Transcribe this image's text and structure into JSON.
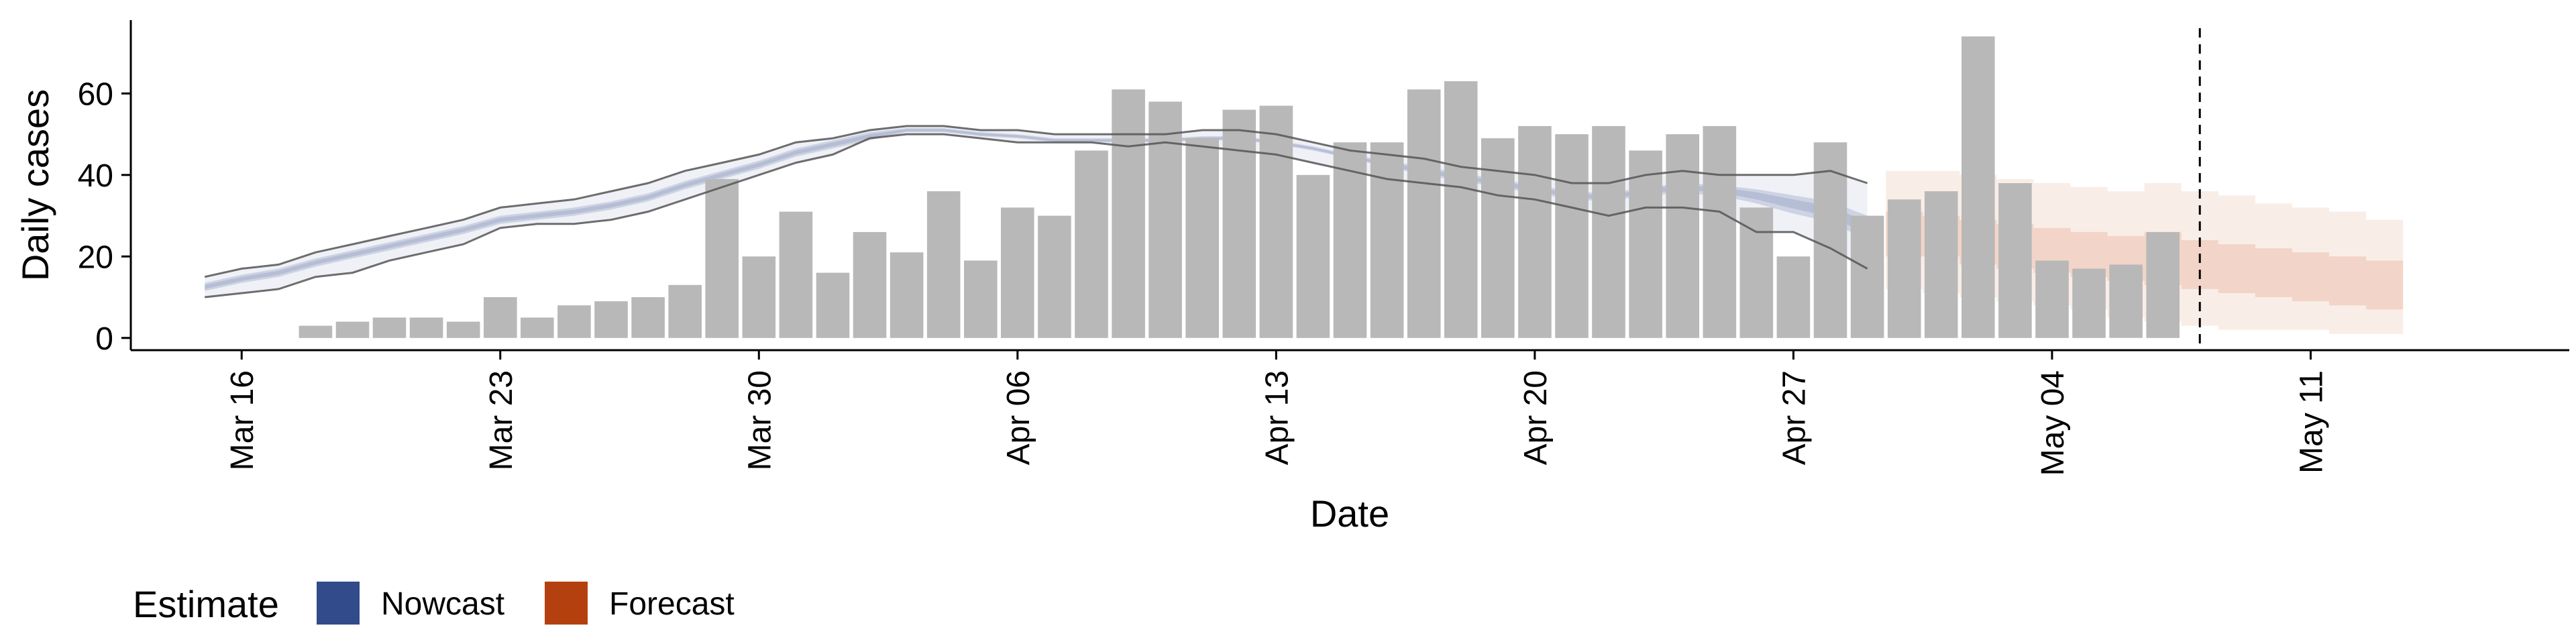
{
  "chart_data": {
    "type": "bar",
    "xlabel": "Date",
    "ylabel": "Daily cases",
    "xlim": [
      "2020-03-13",
      "2020-05-18"
    ],
    "ylim": [
      -3,
      78
    ],
    "y_ticks": [
      0,
      20,
      40,
      60
    ],
    "x_ticks": [
      "2020-03-16",
      "2020-03-23",
      "2020-03-30",
      "2020-04-06",
      "2020-04-13",
      "2020-04-20",
      "2020-04-27",
      "2020-05-04",
      "2020-05-11"
    ],
    "x_tick_labels": [
      "Mar 16",
      "Mar 23",
      "Mar 30",
      "Apr 06",
      "Apr 13",
      "Apr 20",
      "Apr 27",
      "May 04",
      "May 11"
    ],
    "grid": false,
    "legend": {
      "position": "bottom-left",
      "title": "Estimate",
      "items": [
        {
          "label": "Nowcast",
          "color": "#324b8a"
        },
        {
          "label": "Forecast",
          "color": "#b5400f"
        }
      ]
    },
    "vline_date": "2020-05-08",
    "bar_color": "#b8b8b8",
    "bars": {
      "x": [
        "2020-03-18",
        "2020-03-19",
        "2020-03-20",
        "2020-03-21",
        "2020-03-22",
        "2020-03-23",
        "2020-03-24",
        "2020-03-25",
        "2020-03-26",
        "2020-03-27",
        "2020-03-28",
        "2020-03-29",
        "2020-03-30",
        "2020-03-31",
        "2020-04-01",
        "2020-04-02",
        "2020-04-03",
        "2020-04-04",
        "2020-04-05",
        "2020-04-06",
        "2020-04-07",
        "2020-04-08",
        "2020-04-09",
        "2020-04-10",
        "2020-04-11",
        "2020-04-12",
        "2020-04-13",
        "2020-04-14",
        "2020-04-15",
        "2020-04-16",
        "2020-04-17",
        "2020-04-18",
        "2020-04-19",
        "2020-04-20",
        "2020-04-21",
        "2020-04-22",
        "2020-04-23",
        "2020-04-24",
        "2020-04-25",
        "2020-04-26",
        "2020-04-27",
        "2020-04-28",
        "2020-04-29",
        "2020-04-30",
        "2020-05-01",
        "2020-05-02",
        "2020-05-03",
        "2020-05-04",
        "2020-05-05",
        "2020-05-06",
        "2020-05-07",
        "2020-05-08"
      ],
      "values": [
        3,
        4,
        5,
        5,
        4,
        10,
        5,
        8,
        9,
        10,
        13,
        39,
        20,
        31,
        16,
        26,
        21,
        36,
        19,
        32,
        30,
        46,
        61,
        58,
        49,
        56,
        57,
        40,
        48,
        48,
        61,
        63,
        49,
        52,
        50,
        52,
        46,
        50,
        52,
        32,
        20,
        48,
        30,
        34,
        36,
        74,
        38,
        19,
        17,
        18,
        26,
        0
      ]
    },
    "series": [
      {
        "name": "Nowcast",
        "x": [
          "2020-03-15",
          "2020-03-16",
          "2020-03-17",
          "2020-03-18",
          "2020-03-19",
          "2020-03-20",
          "2020-03-21",
          "2020-03-22",
          "2020-03-23",
          "2020-03-24",
          "2020-03-25",
          "2020-03-26",
          "2020-03-27",
          "2020-03-28",
          "2020-03-29",
          "2020-03-30",
          "2020-03-31",
          "2020-04-01",
          "2020-04-02",
          "2020-04-03",
          "2020-04-04",
          "2020-04-05",
          "2020-04-06",
          "2020-04-07",
          "2020-04-08",
          "2020-04-09",
          "2020-04-10",
          "2020-04-11",
          "2020-04-12",
          "2020-04-13",
          "2020-04-14",
          "2020-04-15",
          "2020-04-16",
          "2020-04-17",
          "2020-04-18",
          "2020-04-19",
          "2020-04-20",
          "2020-04-21",
          "2020-04-22",
          "2020-04-23",
          "2020-04-24",
          "2020-04-25",
          "2020-04-26",
          "2020-04-27",
          "2020-04-28",
          "2020-04-29"
        ],
        "upper90": [
          15,
          17,
          18,
          21,
          23,
          25,
          27,
          29,
          32,
          33,
          34,
          36,
          38,
          41,
          43,
          45,
          48,
          49,
          51,
          52,
          52,
          51,
          51,
          50,
          50,
          50,
          50,
          51,
          51,
          50,
          48,
          46,
          45,
          44,
          42,
          41,
          40,
          38,
          38,
          40,
          41,
          40,
          40,
          40,
          41,
          38
        ],
        "upper50": [
          13.5,
          15.5,
          17,
          19.5,
          21.5,
          23.5,
          25.5,
          27.5,
          30,
          31,
          32,
          33.5,
          35.5,
          38.5,
          41,
          43.5,
          46.5,
          48.5,
          50.5,
          51.5,
          51.5,
          50.5,
          50,
          49,
          49,
          49,
          49,
          49.5,
          49.5,
          48.5,
          47,
          45,
          43.5,
          42,
          40.5,
          39,
          37.5,
          36,
          35.5,
          37,
          38,
          37.5,
          36.5,
          35,
          33.5,
          30
        ],
        "median": [
          12.5,
          14.5,
          16,
          18.5,
          20.5,
          22.5,
          24.5,
          26.5,
          29,
          30,
          31,
          32.5,
          34.5,
          37.5,
          40,
          42.5,
          45.5,
          47.5,
          49.5,
          51,
          51,
          50,
          49.5,
          48.5,
          48.5,
          48.5,
          48.5,
          49,
          49,
          48,
          46.5,
          44.5,
          42.5,
          41,
          39.5,
          38,
          36.5,
          35,
          34.5,
          36,
          37,
          36.5,
          35,
          33,
          31,
          27
        ],
        "lower50": [
          11.5,
          13.5,
          15,
          17.5,
          19.5,
          21.5,
          23.5,
          25.5,
          28,
          29,
          30,
          31.5,
          33.5,
          36.5,
          39,
          41.5,
          44.5,
          46.5,
          48.5,
          50.5,
          50.5,
          49.5,
          49,
          48,
          48,
          48,
          48,
          48.5,
          48.5,
          47.5,
          46,
          44,
          42,
          40,
          38.5,
          37,
          35.5,
          34,
          33.5,
          35,
          35.5,
          35,
          33,
          30.5,
          28.5,
          24
        ],
        "lower90": [
          10,
          11,
          12,
          15,
          16,
          19,
          21,
          23,
          27,
          28,
          28,
          29,
          31,
          34,
          37,
          40,
          43,
          45,
          49,
          50,
          50,
          49,
          48,
          48,
          48,
          47,
          48,
          47,
          46,
          45,
          43,
          41,
          39,
          38,
          37,
          35,
          34,
          32,
          30,
          32,
          32,
          31,
          26,
          26,
          22,
          17
        ]
      },
      {
        "name": "Forecast",
        "x": [
          "2020-04-30",
          "2020-05-01",
          "2020-05-02",
          "2020-05-03",
          "2020-05-04",
          "2020-05-05",
          "2020-05-06",
          "2020-05-07",
          "2020-05-08",
          "2020-05-09",
          "2020-05-10",
          "2020-05-11",
          "2020-05-12",
          "2020-05-13"
        ],
        "upper90": [
          41,
          41,
          40,
          39,
          38,
          37,
          36,
          38,
          36,
          35,
          33,
          32,
          31,
          29
        ],
        "upper50": [
          31,
          30,
          29,
          28,
          27,
          26,
          25,
          26,
          24,
          23,
          22,
          21,
          20,
          19
        ],
        "lower50": [
          20,
          20,
          18,
          17,
          16,
          15,
          14,
          13,
          12,
          11,
          10,
          9,
          8,
          7
        ],
        "lower90": [
          12,
          11,
          10,
          9,
          8,
          7,
          5,
          4,
          3,
          2,
          2,
          2,
          1,
          1
        ]
      }
    ]
  }
}
